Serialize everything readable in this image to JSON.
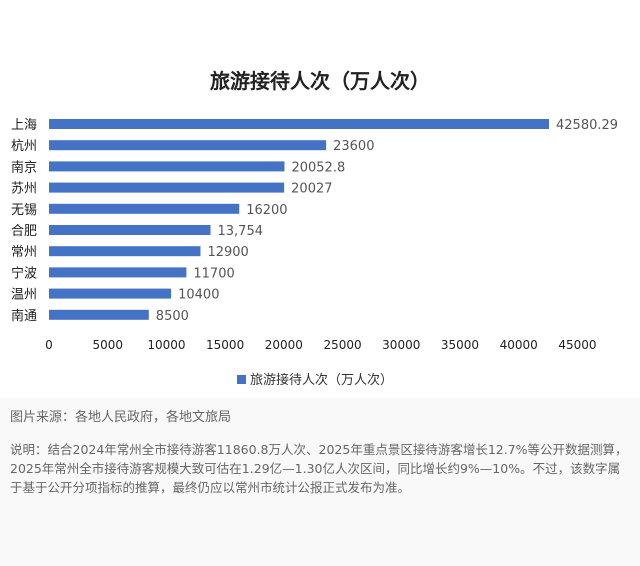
{
  "chart_data": {
    "type": "bar",
    "orientation": "horizontal",
    "title": "旅游接待人次（万人次）",
    "categories": [
      "上海",
      "杭州",
      "南京",
      "苏州",
      "无锡",
      "合肥",
      "常州",
      "宁波",
      "温州",
      "南通"
    ],
    "values": [
      42580.29,
      23600,
      20052.8,
      20027,
      16200,
      13754,
      12900,
      11700,
      10400,
      8500
    ],
    "value_labels": [
      "42580.29",
      "23600",
      "20052.8",
      "20027",
      "16200",
      "13,754",
      "12900",
      "11700",
      "10400",
      "8500"
    ],
    "x_ticks": [
      0,
      5000,
      10000,
      15000,
      20000,
      25000,
      30000,
      35000,
      40000,
      45000
    ],
    "xlim": [
      0,
      45000
    ],
    "legend": "旅游接待人次（万人次）",
    "legend_position": "bottom",
    "grid": false,
    "bar_color": "#4472c4"
  },
  "source": "图片来源：各地人民政府，各地文旅局",
  "note": "说明：结合2024年常州全市接待游客11860.8万人次、2025年重点景区接待游客增长12.7%等公开数据测算，2025年常州全市接待游客规模大致可估在1.29亿—1.30亿人次区间，同比增长约9%—10%。不过，该数字属于基于公开分项指标的推算，最终仍应以常州市统计公报正式发布为准。"
}
